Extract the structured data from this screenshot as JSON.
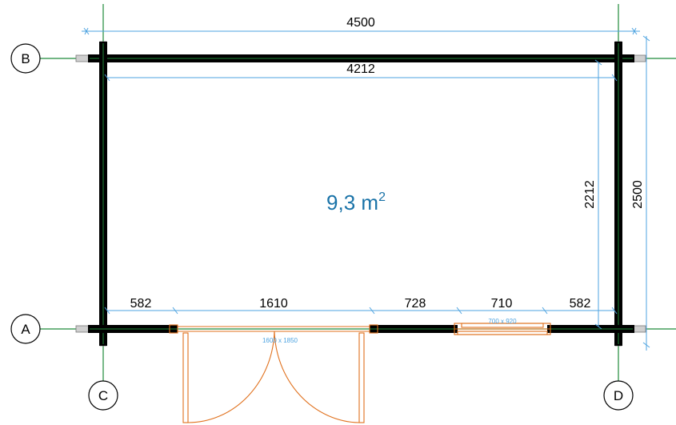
{
  "axes": {
    "A": "A",
    "B": "B",
    "C": "C",
    "D": "D"
  },
  "dimensions": {
    "outer_width": "4500",
    "inner_width": "4212",
    "inner_depth": "2212",
    "outer_depth": "2500",
    "front_segments": [
      "582",
      "1610",
      "728",
      "710",
      "582"
    ]
  },
  "area": {
    "value": "9,3 m",
    "exponent": "2"
  },
  "openings": {
    "door_size": "1600 x 1850",
    "window_size": "700 x 920"
  },
  "colors": {
    "wall": "#000000",
    "wall_core": "#1f8a3a",
    "grid_line": "#1f8a3a",
    "dimension_line": "#4da3e0",
    "door_window": "#e0701c",
    "area_text": "#1a73a8"
  }
}
